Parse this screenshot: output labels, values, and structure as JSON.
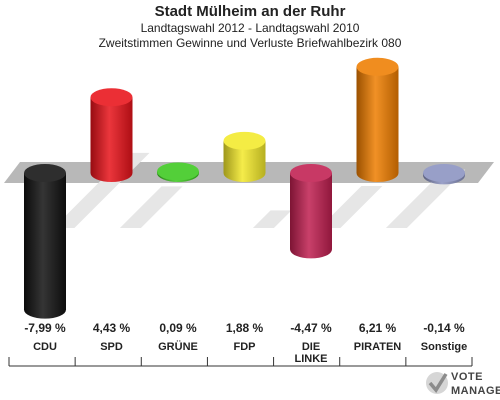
{
  "header": {
    "title": "Stadt Mülheim an der Ruhr",
    "subtitle": "Landtagswahl 2012 - Landtagswahl 2010",
    "description": "Zweitstimmen Gewinne und Verluste Briefwahlbezirk 080"
  },
  "chart_data": {
    "type": "bar",
    "categories": [
      "CDU",
      "SPD",
      "GRÜNE",
      "FDP",
      "DIE LINKE",
      "PIRATEN",
      "Sonstige"
    ],
    "series": [
      {
        "values": [
          -7.99,
          4.43,
          0.09,
          1.88,
          -4.47,
          6.21,
          -0.14
        ]
      }
    ],
    "value_labels": [
      "-7,99 %",
      "4,43 %",
      "0,09 %",
      "1,88 %",
      "-4,47 %",
      "6,21 %",
      "-0,14 %"
    ],
    "colors": [
      "#111111",
      "#e8131a",
      "#3cc81e",
      "#f3e92a",
      "#c01e50",
      "#ee7d00",
      "#8a92c0"
    ],
    "ylim": [
      -8,
      6.5
    ],
    "grid": false
  },
  "logo": {
    "line1": "VOTE",
    "line2": "MANAGER"
  }
}
